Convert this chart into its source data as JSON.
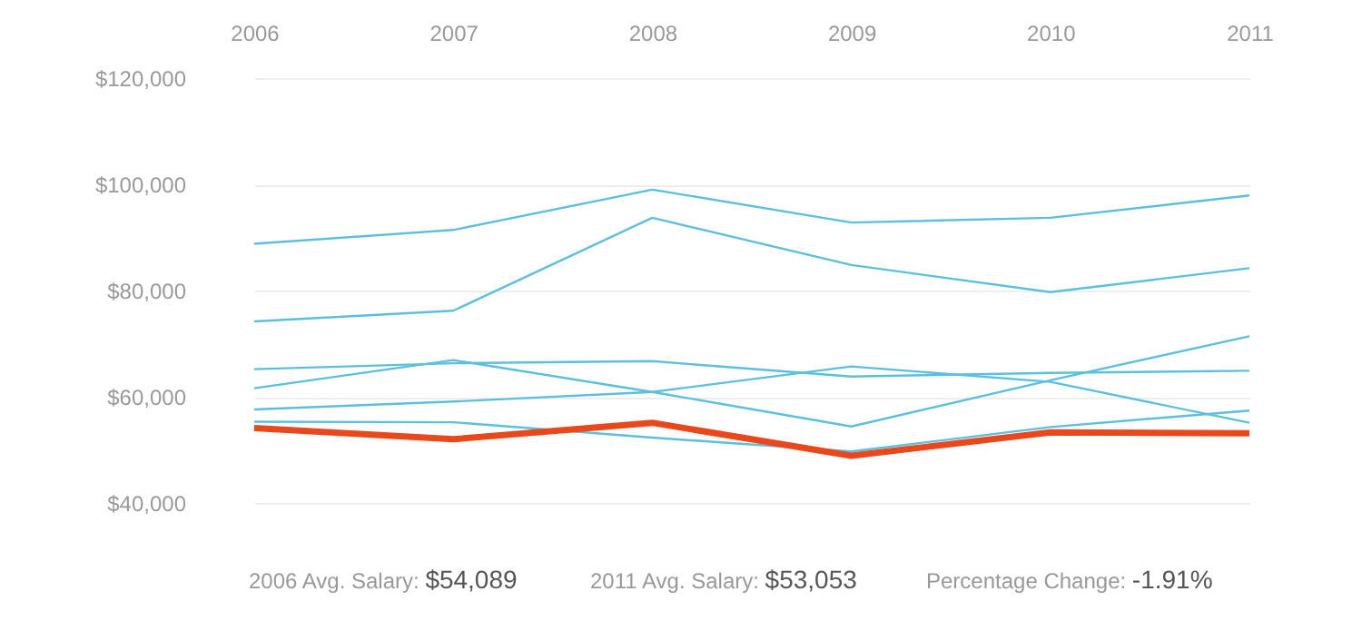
{
  "chart_data": {
    "type": "line",
    "categories": [
      "2006",
      "2007",
      "2008",
      "2009",
      "2010",
      "2011"
    ],
    "series": [
      {
        "color": "#5bc0de",
        "values": [
          88800,
          91400,
          99000,
          92800,
          93700,
          97900
        ]
      },
      {
        "color": "#5bc0de",
        "values": [
          74200,
          76200,
          93700,
          84800,
          79700,
          84200
        ]
      },
      {
        "color": "#5bc0de",
        "values": [
          65200,
          66300,
          66700,
          63800,
          64500,
          64900
        ]
      },
      {
        "color": "#5bc0de",
        "values": [
          61600,
          66900,
          60900,
          54400,
          63100,
          71400
        ]
      },
      {
        "color": "#5bc0de",
        "values": [
          57600,
          59100,
          60900,
          65700,
          62800,
          55100
        ]
      },
      {
        "color": "#5bc0de",
        "values": [
          55300,
          55200,
          52300,
          49700,
          54300,
          57400
        ]
      },
      {
        "color": "#e8481c",
        "values": [
          54100,
          52000,
          55100,
          48900,
          53300,
          53100
        ]
      }
    ],
    "ylim": [
      40000,
      120000
    ],
    "yticks": [
      {
        "value": 40000,
        "label": "$40,000"
      },
      {
        "value": 60000,
        "label": "$60,000"
      },
      {
        "value": 80000,
        "label": "$80,000"
      },
      {
        "value": 100000,
        "label": "$100,000"
      },
      {
        "value": 120000,
        "label": "$120,000"
      }
    ],
    "grid": "y",
    "annotations": [
      "2006 Avg. Salary: $54,089",
      "2011 Avg. Salary: $53,053",
      "Percentage Change: -1.91%"
    ]
  }
}
